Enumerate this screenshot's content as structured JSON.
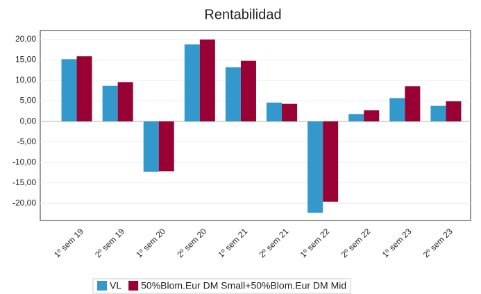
{
  "chart_data": {
    "type": "bar",
    "title": "Rentabilidad",
    "categories": [
      "1º sem 19",
      "2º sem 19",
      "1º sem 20",
      "2º sem 20",
      "1º sem 21",
      "2º sem 21",
      "1º sem 22",
      "2º sem 22",
      "1º sem 23",
      "2º sem 23"
    ],
    "series": [
      {
        "name": "VL",
        "color": "#3399cc",
        "values": [
          15.2,
          8.7,
          -12.3,
          18.8,
          13.2,
          4.6,
          -22.3,
          1.8,
          5.7,
          3.8
        ]
      },
      {
        "name": "50%Blom.Eur DM Small+50%Blom.Eur DM Mid",
        "color": "#990033",
        "values": [
          15.9,
          9.6,
          -12.2,
          20.0,
          14.8,
          4.3,
          -19.6,
          2.7,
          8.6,
          4.9
        ]
      }
    ],
    "ylim": [
      -24.2,
      22.2
    ],
    "yticks": [
      {
        "value": 20,
        "label": "20,00"
      },
      {
        "value": 15,
        "label": "15,00"
      },
      {
        "value": 10,
        "label": "10,00"
      },
      {
        "value": 5,
        "label": "5,00"
      },
      {
        "value": 0,
        "label": "0,00"
      },
      {
        "value": -5,
        "label": "-5,00"
      },
      {
        "value": -10,
        "label": "-10,00"
      },
      {
        "value": -15,
        "label": "-15,00"
      },
      {
        "value": -20,
        "label": "-20,00"
      }
    ],
    "grid": true,
    "legend": "bottom"
  }
}
